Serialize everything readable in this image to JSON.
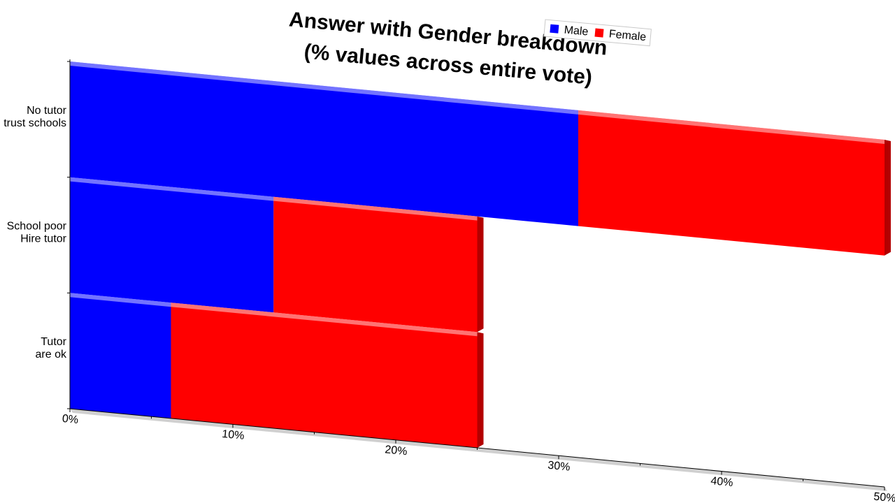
{
  "chart_data": {
    "type": "bar",
    "orientation": "horizontal",
    "stacked": true,
    "perspective_3d": true,
    "title": "Answer with Gender breakdown\n(% values across entire vote)",
    "title_lines": [
      "Answer with Gender breakdown",
      "(% values across entire vote)"
    ],
    "categories": [
      "No tutor\ntrust schools",
      "School poor\nHire tutor",
      "Tutor\nare ok"
    ],
    "category_lines": [
      [
        "No tutor",
        "trust schools"
      ],
      [
        "School poor",
        "Hire tutor"
      ],
      [
        "Tutor",
        "are ok"
      ]
    ],
    "series": [
      {
        "name": "Male",
        "values": [
          31.2,
          12.5,
          6.2
        ],
        "color": "#0000ff"
      },
      {
        "name": "Female",
        "values": [
          18.8,
          12.5,
          18.8
        ],
        "color": "#ff0000"
      }
    ],
    "xlim": [
      0,
      50
    ],
    "ticks": [
      0,
      10,
      20,
      30,
      40,
      50
    ],
    "tick_labels": [
      "0%",
      "10%",
      "20%",
      "30%",
      "40%",
      "50%"
    ],
    "legend": {
      "position": "top-right",
      "entries": [
        "Male",
        "Female"
      ]
    },
    "grid": false
  }
}
